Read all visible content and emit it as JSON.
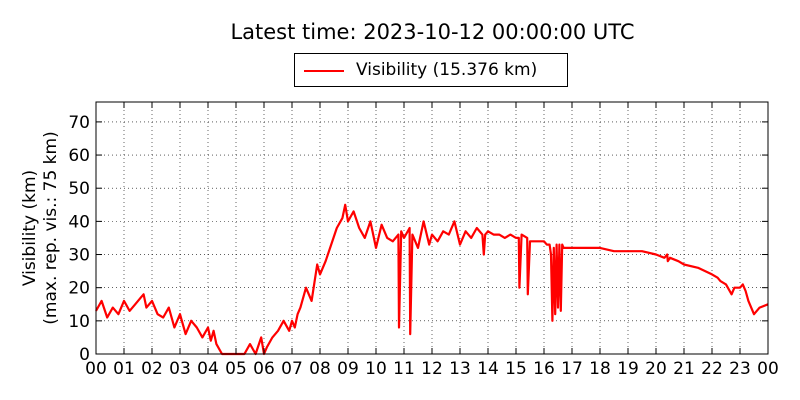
{
  "title": "Latest time: 2023-10-12 00:00:00 UTC",
  "legend": {
    "label": "Visibility (15.376 km)"
  },
  "colors": {
    "series": "#ff0000",
    "grid": "#000000"
  },
  "chart_data": {
    "type": "line",
    "title": "Latest time: 2023-10-12 00:00:00 UTC",
    "ylabel_line1": "Visibility (km)",
    "ylabel_line2": "(max. rep. vis.: 75 km)",
    "xlabel": "",
    "xlim": [
      0,
      24
    ],
    "ylim": [
      0,
      76
    ],
    "grid": true,
    "grid_style": "dotted",
    "legend_position": "top-center",
    "x_ticks": [
      0,
      1,
      2,
      3,
      4,
      5,
      6,
      7,
      8,
      9,
      10,
      11,
      12,
      13,
      14,
      15,
      16,
      17,
      18,
      19,
      20,
      21,
      22,
      23,
      24
    ],
    "x_tick_labels": [
      "00",
      "01",
      "02",
      "03",
      "04",
      "05",
      "06",
      "07",
      "08",
      "09",
      "10",
      "11",
      "12",
      "13",
      "14",
      "15",
      "16",
      "17",
      "18",
      "19",
      "20",
      "21",
      "22",
      "23",
      "00"
    ],
    "y_ticks": [
      0,
      10,
      20,
      30,
      40,
      50,
      60,
      70
    ],
    "y_tick_labels": [
      "0",
      "10",
      "20",
      "30",
      "40",
      "50",
      "60",
      "70"
    ],
    "series": [
      {
        "name": "Visibility (15.376 km)",
        "x": [
          0.0,
          0.2,
          0.4,
          0.6,
          0.8,
          1.0,
          1.2,
          1.4,
          1.6,
          1.7,
          1.8,
          2.0,
          2.2,
          2.4,
          2.6,
          2.8,
          3.0,
          3.2,
          3.4,
          3.6,
          3.8,
          4.0,
          4.1,
          4.2,
          4.3,
          4.5,
          4.8,
          5.0,
          5.3,
          5.5,
          5.7,
          5.9,
          6.0,
          6.1,
          6.3,
          6.5,
          6.7,
          6.9,
          7.0,
          7.1,
          7.2,
          7.3,
          7.5,
          7.7,
          7.9,
          8.0,
          8.2,
          8.4,
          8.6,
          8.8,
          8.9,
          9.0,
          9.2,
          9.4,
          9.6,
          9.8,
          10.0,
          10.2,
          10.4,
          10.6,
          10.8,
          10.82,
          10.9,
          11.0,
          11.2,
          11.22,
          11.3,
          11.5,
          11.7,
          11.9,
          12.0,
          12.2,
          12.4,
          12.6,
          12.8,
          13.0,
          13.2,
          13.4,
          13.6,
          13.8,
          13.85,
          13.9,
          14.0,
          14.2,
          14.4,
          14.6,
          14.8,
          15.0,
          15.1,
          15.12,
          15.2,
          15.4,
          15.42,
          15.5,
          15.7,
          15.9,
          16.0,
          16.1,
          16.2,
          16.25,
          16.3,
          16.35,
          16.4,
          16.45,
          16.5,
          16.55,
          16.6,
          16.65,
          16.7,
          16.9,
          17.0,
          17.5,
          18.0,
          18.5,
          19.0,
          19.5,
          20.0,
          20.3,
          20.4,
          20.42,
          20.5,
          20.8,
          21.0,
          21.5,
          22.0,
          22.2,
          22.3,
          22.5,
          22.7,
          22.8,
          23.0,
          23.1,
          23.2,
          23.3,
          23.5,
          23.7,
          24.0
        ],
        "y": [
          13,
          16,
          11,
          14,
          12,
          16,
          13,
          15,
          17,
          18,
          14,
          16,
          12,
          11,
          14,
          8,
          12,
          6,
          10,
          8,
          5,
          8,
          4,
          7,
          3,
          0,
          0,
          0,
          0,
          3,
          0,
          5,
          0,
          2,
          5,
          7,
          10,
          7,
          10,
          8,
          12,
          14,
          20,
          16,
          27,
          24,
          28,
          33,
          38,
          41,
          45,
          40,
          43,
          38,
          35,
          40,
          32,
          39,
          35,
          34,
          36,
          8,
          37,
          35,
          38,
          6,
          36,
          32,
          40,
          33,
          36,
          34,
          37,
          36,
          40,
          33,
          37,
          35,
          38,
          36,
          30,
          36,
          37,
          36,
          36,
          35,
          36,
          35,
          35,
          20,
          36,
          35,
          18,
          34,
          34,
          34,
          34,
          33,
          33,
          30,
          10,
          32,
          12,
          33,
          14,
          33,
          13,
          33,
          32,
          32,
          32,
          32,
          32,
          31,
          31,
          31,
          30,
          29,
          30,
          28,
          29,
          28,
          27,
          26,
          24,
          23,
          22,
          21,
          18,
          20,
          20,
          21,
          19,
          16,
          12,
          14,
          15
        ]
      }
    ]
  }
}
